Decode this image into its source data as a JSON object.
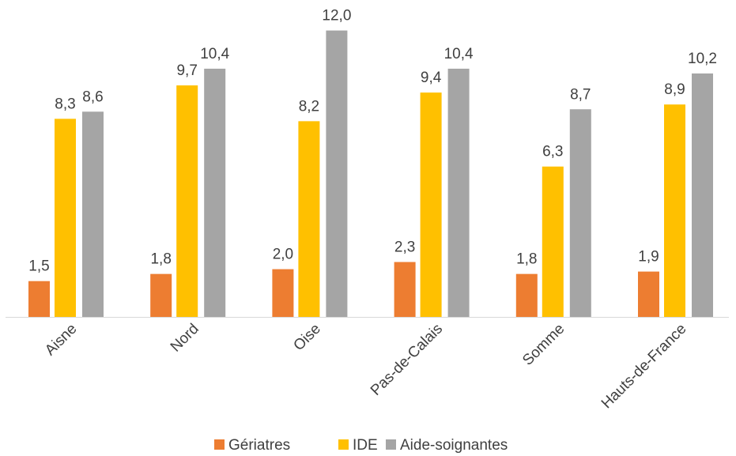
{
  "chart_data": {
    "type": "bar",
    "categories": [
      "Aisne",
      "Nord",
      "Oise",
      "Pas-de-Calais",
      "Somme",
      "Hauts-de-France"
    ],
    "series": [
      {
        "name": "Gériatres",
        "color": "#ED7D31",
        "values": [
          1.5,
          1.8,
          2.0,
          2.3,
          1.8,
          1.9
        ],
        "labels": [
          "1,5",
          "1,8",
          "2,0",
          "2,3",
          "1,8",
          "1,9"
        ]
      },
      {
        "name": "IDE",
        "color": "#FFC000",
        "values": [
          8.3,
          9.7,
          8.2,
          9.4,
          6.3,
          8.9
        ],
        "labels": [
          "8,3",
          "9,7",
          "8,2",
          "9,4",
          "6,3",
          "8,9"
        ]
      },
      {
        "name": "Aide-soignantes",
        "color": "#A5A5A5",
        "values": [
          8.6,
          10.4,
          12.0,
          10.4,
          8.7,
          10.2
        ],
        "labels": [
          "8,6",
          "10,4",
          "12,0",
          "10,4",
          "8,7",
          "10,2"
        ]
      }
    ],
    "ylim": [
      0,
      12
    ],
    "grid": false,
    "legend_position": "bottom",
    "axis_color": "#D9D9D9"
  }
}
